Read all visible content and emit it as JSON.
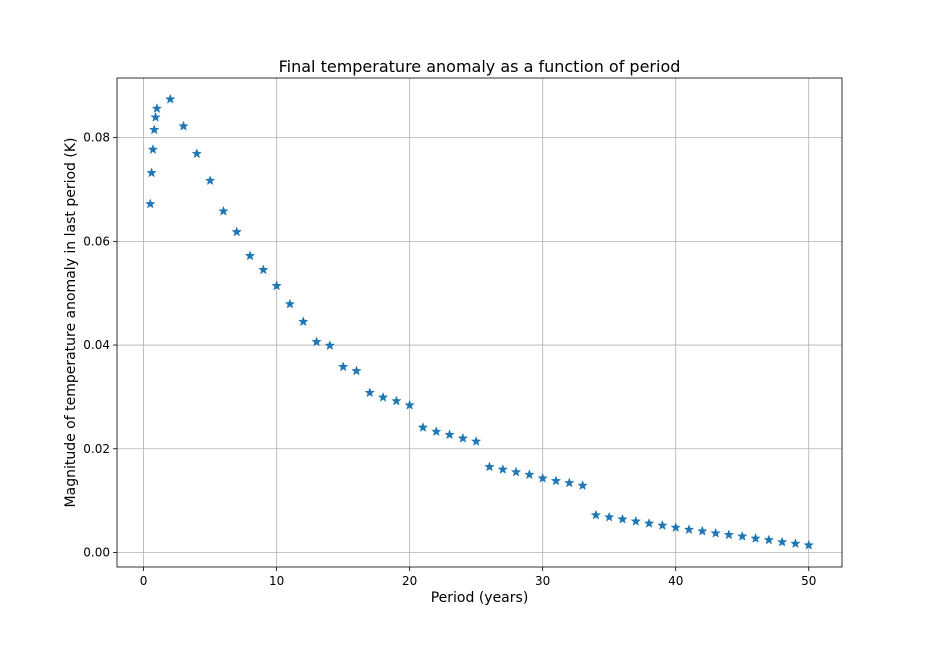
{
  "chart_data": {
    "type": "scatter",
    "title": "Final temperature anomaly as a function of period",
    "xlabel": "Period (years)",
    "ylabel": "Magnitude of temperature anomaly in last period (K)",
    "xlim": [
      -2,
      52.5
    ],
    "ylim": [
      -0.0028,
      0.0915
    ],
    "xticks": [
      0,
      10,
      20,
      30,
      40,
      50
    ],
    "yticks": [
      0.0,
      0.02,
      0.04,
      0.06,
      0.08
    ],
    "xtick_labels": [
      "0",
      "10",
      "20",
      "30",
      "40",
      "50"
    ],
    "ytick_labels": [
      "0.00",
      "0.02",
      "0.04",
      "0.06",
      "0.08"
    ],
    "grid": true,
    "marker": "star",
    "color": "#1f77b4",
    "series": [
      {
        "x": [
          0.5,
          0.6,
          0.7,
          0.8,
          0.9,
          1.0,
          2,
          3,
          4,
          5,
          6,
          7,
          8,
          9,
          10,
          11,
          12,
          13,
          14,
          15,
          16,
          17,
          18,
          19,
          20,
          21,
          22,
          23,
          24,
          25,
          26,
          27,
          28,
          29,
          30,
          31,
          32,
          33,
          34,
          35,
          36,
          37,
          38,
          39,
          40,
          41,
          42,
          43,
          44,
          45,
          46,
          47,
          48,
          49,
          50
        ],
        "y": [
          0.0672,
          0.0732,
          0.0777,
          0.0815,
          0.0839,
          0.0856,
          0.0874,
          0.0822,
          0.0769,
          0.0717,
          0.0658,
          0.0618,
          0.0572,
          0.0545,
          0.0514,
          0.0479,
          0.0445,
          0.0406,
          0.0399,
          0.0358,
          0.035,
          0.0308,
          0.0299,
          0.0292,
          0.0284,
          0.0241,
          0.0233,
          0.0227,
          0.022,
          0.0214,
          0.0165,
          0.016,
          0.0155,
          0.015,
          0.0143,
          0.0138,
          0.0134,
          0.0129,
          0.0072,
          0.0068,
          0.0064,
          0.006,
          0.0056,
          0.0052,
          0.0048,
          0.0044,
          0.0041,
          0.0037,
          0.0034,
          0.0031,
          0.0027,
          0.0024,
          0.002,
          0.0017,
          0.0014
        ]
      }
    ]
  }
}
